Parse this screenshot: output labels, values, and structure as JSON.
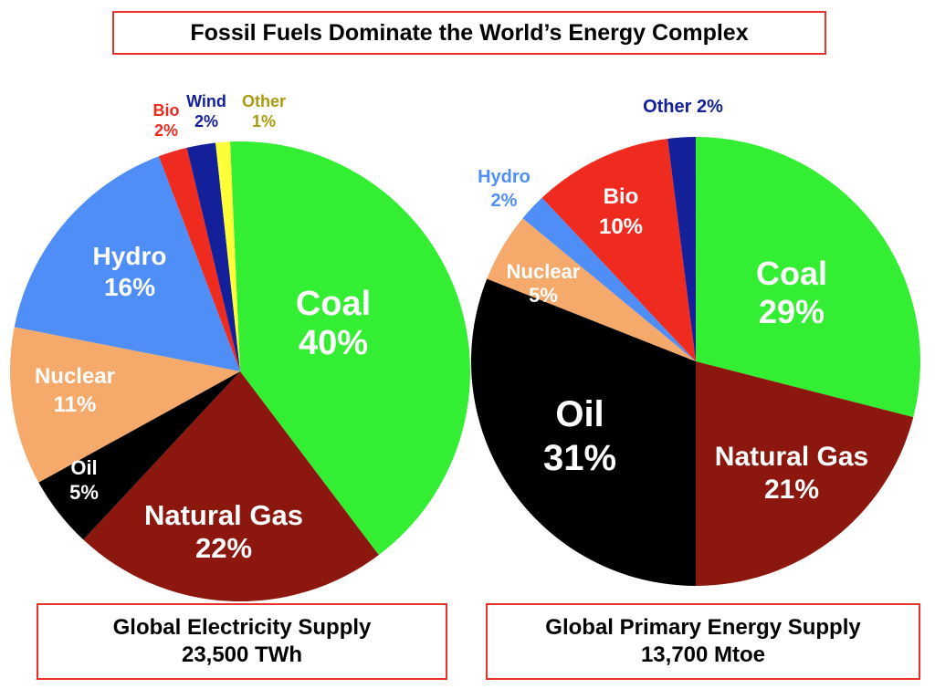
{
  "title": "Fossil Fuels Dominate the World’s Energy Complex",
  "chart_data": [
    {
      "type": "pie",
      "caption_line1": "Global Electricity Supply",
      "caption_line2": "23,500 TWh",
      "slices": [
        {
          "label": "Coal",
          "value": 40,
          "value_text": "40%",
          "color": "#33ee33",
          "text_color": "#ffffff"
        },
        {
          "label": "Natural Gas",
          "value": 22,
          "value_text": "22%",
          "color": "#8b170f",
          "text_color": "#ffffff"
        },
        {
          "label": "Oil",
          "value": 5,
          "value_text": "5%",
          "color": "#000000",
          "text_color": "#ffffff"
        },
        {
          "label": "Nuclear",
          "value": 11,
          "value_text": "11%",
          "color": "#f5a96a",
          "text_color": "#ffffff"
        },
        {
          "label": "Hydro",
          "value": 16,
          "value_text": "16%",
          "color": "#4f8ef7",
          "text_color": "#ffffff"
        },
        {
          "label": "Bio",
          "value": 2,
          "value_text": "2%",
          "color": "#ef2a1f",
          "text_color": "#ef2a1f"
        },
        {
          "label": "Wind",
          "value": 2,
          "value_text": "2%",
          "color": "#13209a",
          "text_color": "#13209a"
        },
        {
          "label": "Other",
          "value": 1,
          "value_text": "1%",
          "color": "#ffff3a",
          "text_color": "#a99a10"
        }
      ]
    },
    {
      "type": "pie",
      "caption_line1": "Global Primary Energy Supply",
      "caption_line2": "13,700 Mtoe",
      "slices": [
        {
          "label": "Coal",
          "value": 29,
          "value_text": "29%",
          "color": "#33ee33",
          "text_color": "#ffffff"
        },
        {
          "label": "Natural Gas",
          "value": 21,
          "value_text": "21%",
          "color": "#8b170f",
          "text_color": "#ffffff"
        },
        {
          "label": "Oil",
          "value": 31,
          "value_text": "31%",
          "color": "#000000",
          "text_color": "#ffffff"
        },
        {
          "label": "Nuclear",
          "value": 5,
          "value_text": "5%",
          "color": "#f5a96a",
          "text_color": "#ffffff"
        },
        {
          "label": "Hydro",
          "value": 2,
          "value_text": "2%",
          "color": "#4f8ef7",
          "text_color": "#4f8ef7"
        },
        {
          "label": "Bio",
          "value": 10,
          "value_text": "10%",
          "color": "#ef2a1f",
          "text_color": "#ffffff"
        },
        {
          "label": "Other",
          "value": 2,
          "value_text": "2%",
          "color": "#13209a",
          "text_color": "#13209a"
        }
      ]
    }
  ]
}
